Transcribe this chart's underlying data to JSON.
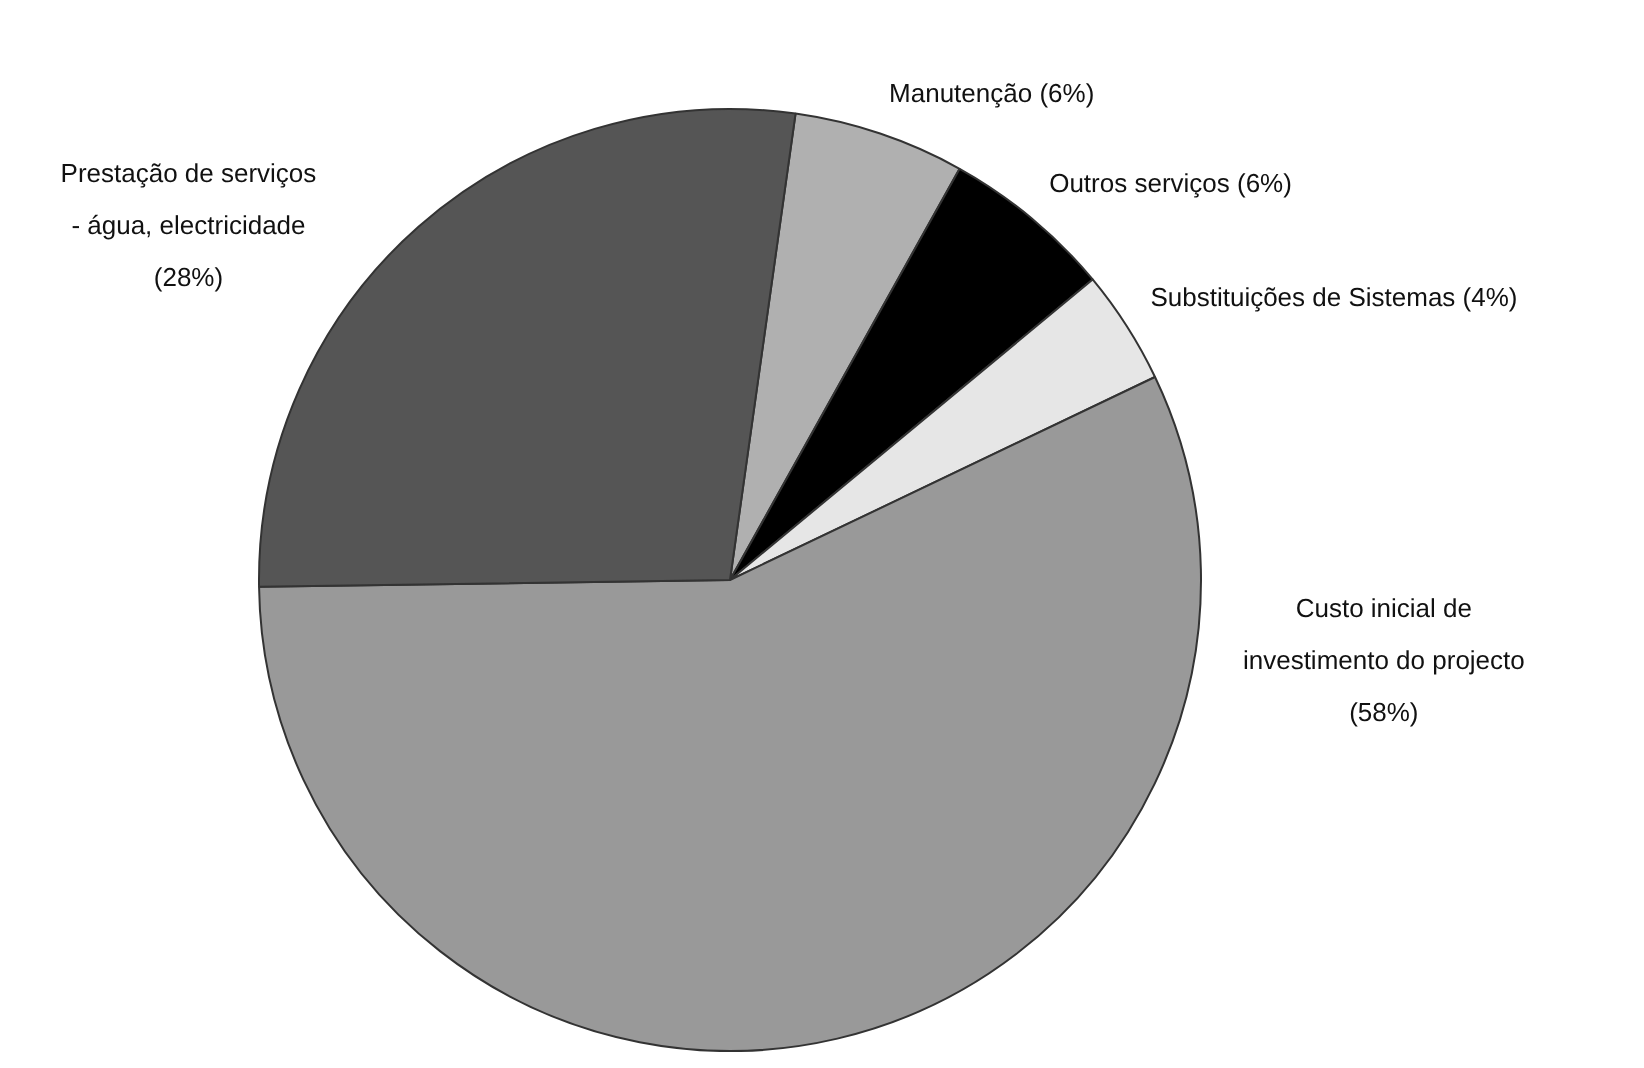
{
  "chart_data": {
    "type": "pie",
    "categories": [
      "Manutenção (6%)",
      "Outros serviços (6%)",
      "Substituições de Sistemas (4%)",
      "Custo inicial de investimento do projecto (58%)",
      "Prestação de serviços - água, electricidade (28%)"
    ],
    "values": [
      6,
      6,
      4,
      58,
      28
    ],
    "colors": [
      "#b0b0b0",
      "#000000",
      "#e6e6e6",
      "#999999",
      "#555555"
    ],
    "legend": false
  }
}
